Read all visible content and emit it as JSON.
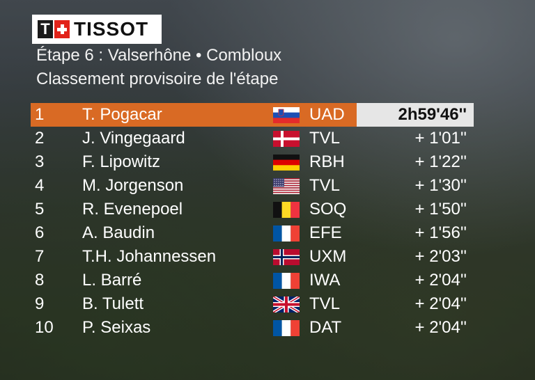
{
  "brand": {
    "name": "TISSOT"
  },
  "stage": {
    "line": "Étape 6 : Valserhône •  Combloux",
    "subtitle": "Classement provisoire de l'étape"
  },
  "colors": {
    "leader_bar": "#d96a24",
    "leader_time_bg": "#e6e6e6"
  },
  "standings": [
    {
      "rank": "1",
      "name": "T. Pogacar",
      "flag": "slovenia",
      "team": "UAD",
      "time": "2h59'46''"
    },
    {
      "rank": "2",
      "name": "J. Vingegaard",
      "flag": "denmark",
      "team": "TVL",
      "time": "+ 1'01''"
    },
    {
      "rank": "3",
      "name": "F. Lipowitz",
      "flag": "germany",
      "team": "RBH",
      "time": "+ 1'22''"
    },
    {
      "rank": "4",
      "name": "M. Jorgenson",
      "flag": "usa",
      "team": "TVL",
      "time": "+ 1'30''"
    },
    {
      "rank": "5",
      "name": "R. Evenepoel",
      "flag": "belgium",
      "team": "SOQ",
      "time": "+ 1'50''"
    },
    {
      "rank": "6",
      "name": "A. Baudin",
      "flag": "france",
      "team": "EFE",
      "time": "+ 1'56''"
    },
    {
      "rank": "7",
      "name": "T.H. Johannessen",
      "flag": "norway",
      "team": "UXM",
      "time": "+ 2'03''"
    },
    {
      "rank": "8",
      "name": "L. Barré",
      "flag": "france",
      "team": "IWA",
      "time": "+ 2'04''"
    },
    {
      "rank": "9",
      "name": "B. Tulett",
      "flag": "uk",
      "team": "TVL",
      "time": "+ 2'04''"
    },
    {
      "rank": "10",
      "name": "P. Seixas",
      "flag": "france",
      "team": "DAT",
      "time": "+ 2'04''"
    }
  ]
}
